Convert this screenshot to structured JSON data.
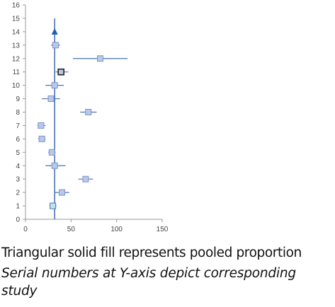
{
  "chart_data": {
    "type": "scatter",
    "subtype": "forest-plot",
    "xlim": [
      0,
      150
    ],
    "ylim": [
      0,
      16
    ],
    "x_ticks": [
      "0",
      "50",
      "100",
      "150"
    ],
    "y_ticks": [
      "0",
      "1",
      "2",
      "3",
      "4",
      "5",
      "6",
      "7",
      "8",
      "9",
      "10",
      "11",
      "12",
      "13",
      "14",
      "15",
      "16"
    ],
    "grid": false,
    "reference_line_x": 32,
    "colors": {
      "marker_fill": "#b7c8ea",
      "marker_edge": "#7f95c6",
      "ci_line": "#4a73b8",
      "highlight_marker_fill": "#bfe3ee",
      "highlight_marker_edge": "#222222",
      "pooled": "#1f5fb0",
      "axis": "#999999"
    },
    "studies": [
      {
        "study": 1,
        "x": 30,
        "ci": [
          28,
          34
        ],
        "marker": "highlight"
      },
      {
        "study": 2,
        "x": 40,
        "ci": [
          32,
          48
        ]
      },
      {
        "study": 3,
        "x": 66,
        "ci": [
          58,
          74
        ]
      },
      {
        "study": 4,
        "x": 32,
        "ci": [
          22,
          44
        ]
      },
      {
        "study": 5,
        "x": 29,
        "ci": [
          25,
          33
        ]
      },
      {
        "study": 6,
        "x": 18,
        "ci": [
          14,
          22
        ]
      },
      {
        "study": 7,
        "x": 17,
        "ci": [
          13,
          22
        ]
      },
      {
        "study": 8,
        "x": 69,
        "ci": [
          60,
          78
        ]
      },
      {
        "study": 9,
        "x": 28,
        "ci": [
          18,
          38
        ]
      },
      {
        "study": 10,
        "x": 32,
        "ci": [
          22,
          42
        ]
      },
      {
        "study": 11,
        "x": 39,
        "ci": [
          33,
          47
        ],
        "marker": "dark"
      },
      {
        "study": 12,
        "x": 82,
        "ci": [
          52,
          112
        ]
      },
      {
        "study": 13,
        "x": 33,
        "ci": [
          28,
          38
        ]
      }
    ],
    "pooled": {
      "x": 32,
      "y": 14
    }
  },
  "captions": {
    "line1": "Triangular solid fill represents pooled proportion",
    "line2": "Serial numbers at Y-axis depict corresponding study"
  }
}
